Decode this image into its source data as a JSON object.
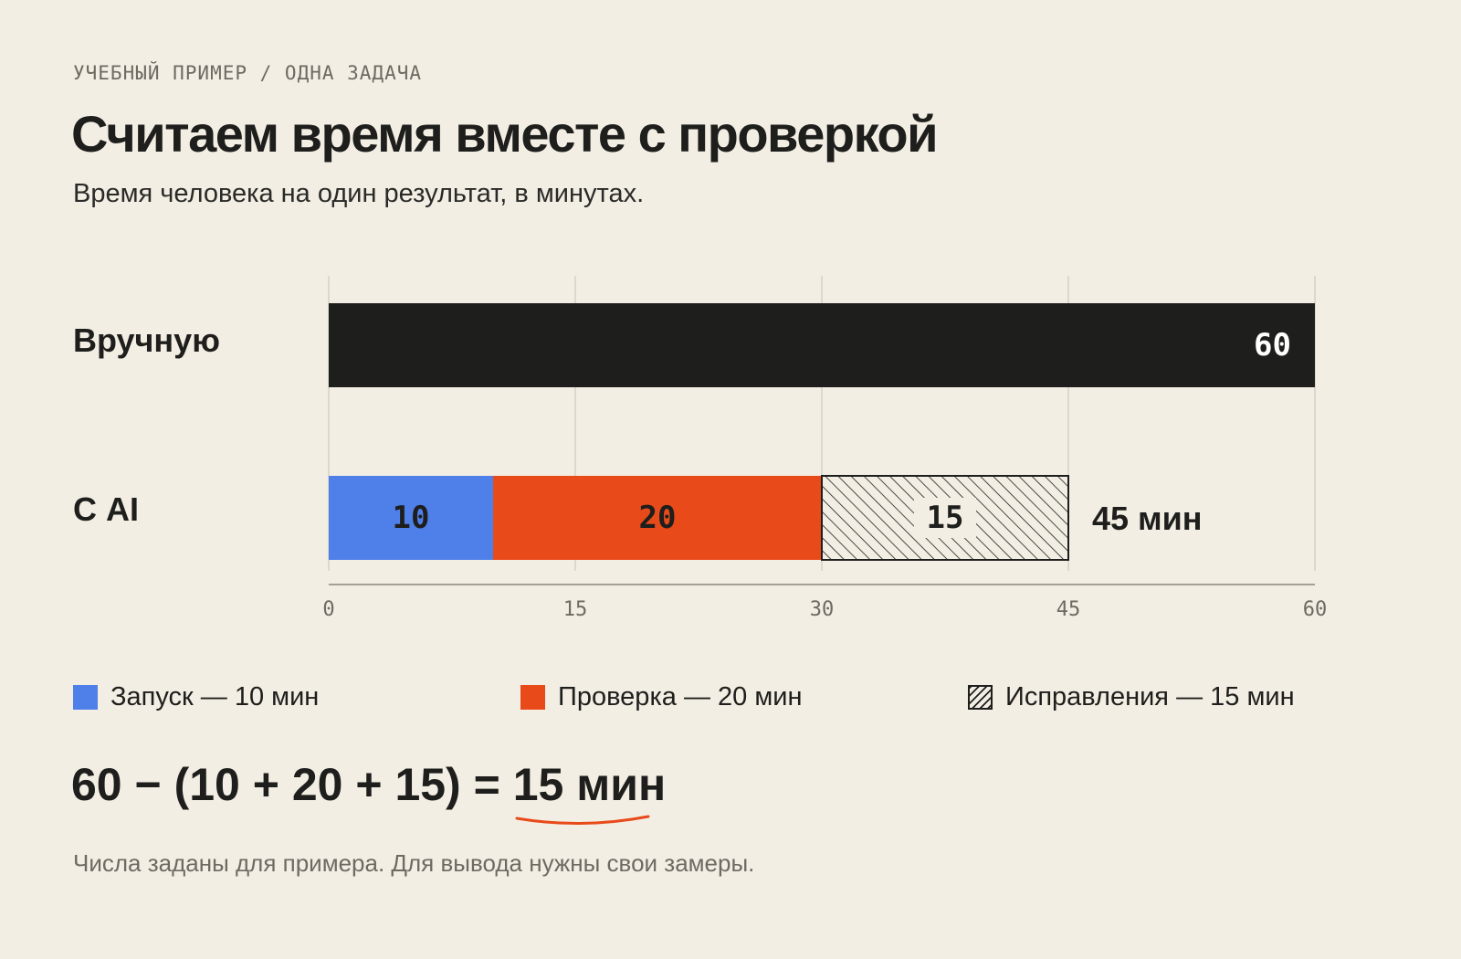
{
  "eyebrow": "УЧЕБНЫЙ ПРИМЕР / ОДНА ЗАДАЧА",
  "title": "Считаем время вместе с проверкой",
  "subtitle": "Время человека на один результат, в минутах.",
  "rows": {
    "manual_label": "Вручную",
    "ai_label": "С AI",
    "ai_total_label": "45 мин"
  },
  "legend": [
    {
      "label": "Запуск — 10 мин",
      "color": "#4f7fe8",
      "pattern": "solid"
    },
    {
      "label": "Проверка — 20 мин",
      "color": "#e84a1a",
      "pattern": "solid"
    },
    {
      "label": "Исправления — 15 мин",
      "color": "#1e1e1c",
      "pattern": "hatch"
    }
  ],
  "formula": {
    "expression": "60 − (10 + 20 + 15) =",
    "result": "15 мин",
    "underline_color": "#e84a1a"
  },
  "footnote": "Числа заданы для примера. Для вывода нужны свои замеры.",
  "chart_data": {
    "type": "bar",
    "orientation": "horizontal",
    "stacked": true,
    "categories": [
      "Вручную",
      "С AI"
    ],
    "series": [
      {
        "name": "Вручную",
        "values": [
          60,
          null
        ],
        "color": "#1e1e1c",
        "pattern": "solid"
      },
      {
        "name": "Запуск",
        "values": [
          null,
          10
        ],
        "color": "#4f7fe8",
        "pattern": "solid"
      },
      {
        "name": "Проверка",
        "values": [
          null,
          20
        ],
        "color": "#e84a1a",
        "pattern": "solid"
      },
      {
        "name": "Исправления",
        "values": [
          null,
          15
        ],
        "color": "#1e1e1c",
        "pattern": "hatch"
      }
    ],
    "data_labels": [
      [
        "60"
      ],
      [
        "10",
        "20",
        "15"
      ]
    ],
    "xlim": [
      0,
      60
    ],
    "xticks": [
      0,
      15,
      30,
      45,
      60
    ],
    "grid": true,
    "xlabel": "",
    "ylabel": ""
  }
}
